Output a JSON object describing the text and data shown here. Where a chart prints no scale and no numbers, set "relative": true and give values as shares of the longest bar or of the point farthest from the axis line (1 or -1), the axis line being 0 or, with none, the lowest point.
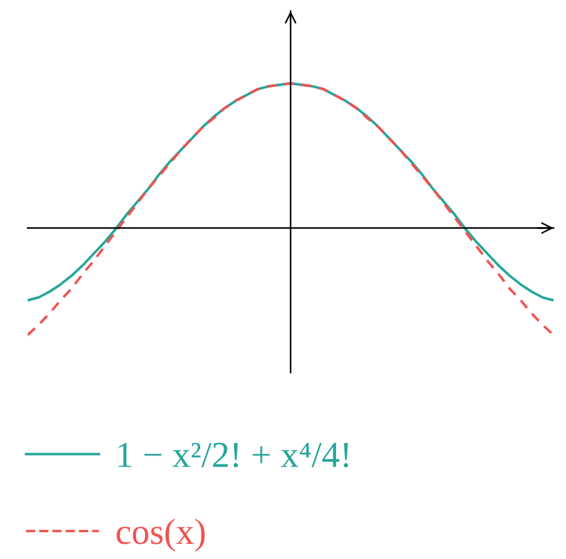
{
  "chart_data": {
    "type": "line",
    "relative": true,
    "legend": "bottom",
    "categories": [
      null,
      null,
      null,
      null,
      null,
      null,
      null,
      null,
      null,
      null,
      null,
      null,
      null,
      null,
      null,
      null,
      null,
      null,
      null,
      null,
      null,
      null,
      null,
      null,
      null,
      null,
      null,
      null,
      null,
      null,
      null,
      null,
      null,
      null,
      null,
      null,
      null,
      null,
      null,
      null,
      null,
      null,
      null,
      null,
      null,
      null,
      null,
      null,
      null
    ],
    "series": [
      {
        "name": "1 − x²/2! + x⁴/4!",
        "color": "#26a69a",
        "line_style": "solid",
        "values": [
          -0.5,
          -0.48,
          -0.44,
          -0.39,
          -0.33,
          -0.26,
          -0.18,
          -0.1,
          -0.01,
          0.09,
          0.18,
          0.27,
          0.37,
          0.46,
          0.54,
          0.62,
          0.7,
          0.77,
          0.83,
          0.88,
          0.92,
          0.96,
          0.98,
          0.99,
          1,
          0.99,
          0.98,
          0.96,
          0.92,
          0.88,
          0.83,
          0.77,
          0.7,
          0.62,
          0.54,
          0.46,
          0.37,
          0.27,
          0.18,
          0.09,
          -0.01,
          -0.1,
          -0.18,
          -0.26,
          -0.33,
          -0.39,
          -0.44,
          -0.48,
          -0.5
        ]
      },
      {
        "name": "cos(x)",
        "color": "#ef5350",
        "line_style": "dashed",
        "values": [
          -0.74,
          -0.67,
          -0.59,
          -0.5,
          -0.42,
          -0.32,
          -0.23,
          -0.13,
          -0.03,
          0.07,
          0.17,
          0.27,
          0.36,
          0.45,
          0.54,
          0.62,
          0.7,
          0.76,
          0.83,
          0.88,
          0.92,
          0.96,
          0.98,
          0.99,
          1,
          0.99,
          0.98,
          0.96,
          0.92,
          0.88,
          0.83,
          0.76,
          0.7,
          0.62,
          0.54,
          0.45,
          0.36,
          0.27,
          0.17,
          0.07,
          -0.03,
          -0.13,
          -0.23,
          -0.32,
          -0.42,
          -0.5,
          -0.59,
          -0.67,
          -0.74
        ]
      }
    ]
  }
}
